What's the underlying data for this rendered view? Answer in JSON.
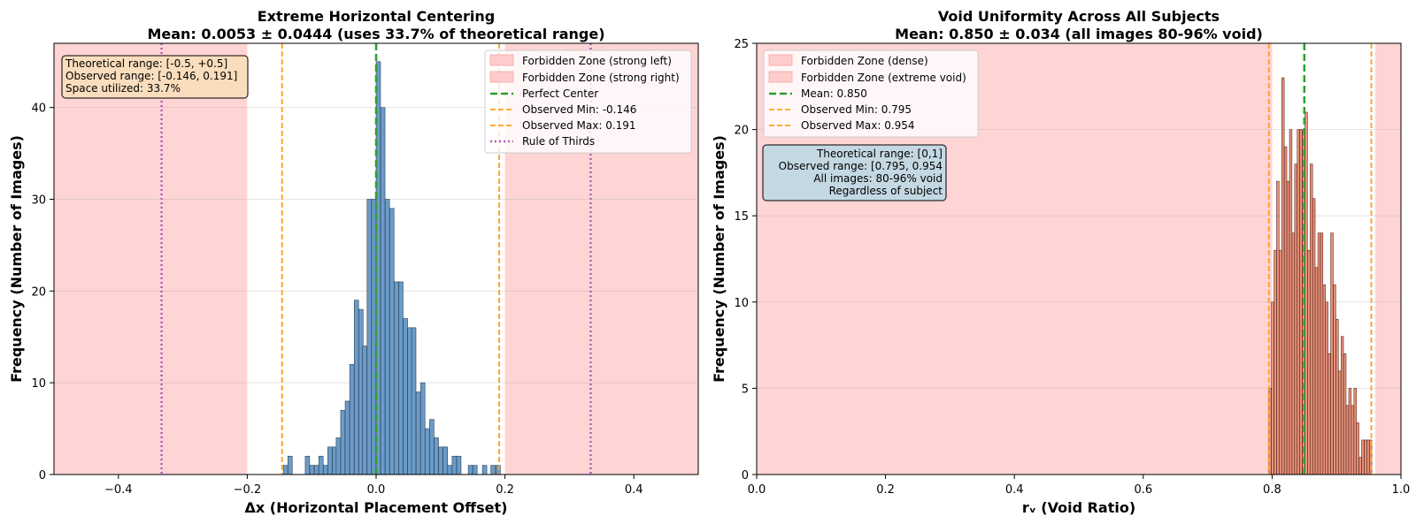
{
  "chart_data": [
    {
      "type": "bar",
      "title": "Extreme Horizontal Centering",
      "subtitle": "Mean: 0.0053 ± 0.0444 (uses 33.7% of theoretical range)",
      "xlabel": "Δx (Horizontal Placement Offset)",
      "ylabel": "Frequency (Number of Images)",
      "xlim": [
        -0.5,
        0.5
      ],
      "ylim": [
        0,
        47
      ],
      "xticks": [
        -0.4,
        -0.2,
        0.0,
        0.2,
        0.4
      ],
      "xtick_labels": [
        "−0.4",
        "−0.2",
        "0.0",
        "0.2",
        "0.4"
      ],
      "yticks": [
        0,
        10,
        20,
        30,
        40
      ],
      "yticks_labels": [
        "0",
        "10",
        "20",
        "30",
        "40"
      ],
      "grid": "y",
      "bar_color": "#6b9bc7",
      "bar_edge": "#2a3f55",
      "bin_width": 0.0068,
      "bins": [
        [
          -0.144,
          1
        ],
        [
          -0.137,
          2
        ],
        [
          -0.11,
          2
        ],
        [
          -0.103,
          1
        ],
        [
          -0.096,
          1
        ],
        [
          -0.089,
          2
        ],
        [
          -0.082,
          1
        ],
        [
          -0.075,
          3
        ],
        [
          -0.068,
          3
        ],
        [
          -0.062,
          4
        ],
        [
          -0.055,
          7
        ],
        [
          -0.048,
          8
        ],
        [
          -0.041,
          12
        ],
        [
          -0.034,
          19
        ],
        [
          -0.027,
          18
        ],
        [
          -0.021,
          14
        ],
        [
          -0.014,
          30
        ],
        [
          -0.007,
          30
        ],
        [
          0.0,
          45
        ],
        [
          0.007,
          40
        ],
        [
          0.014,
          30
        ],
        [
          0.021,
          29
        ],
        [
          0.028,
          21
        ],
        [
          0.035,
          21
        ],
        [
          0.042,
          17
        ],
        [
          0.049,
          16
        ],
        [
          0.055,
          16
        ],
        [
          0.062,
          9
        ],
        [
          0.069,
          10
        ],
        [
          0.076,
          5
        ],
        [
          0.083,
          6
        ],
        [
          0.09,
          4
        ],
        [
          0.097,
          3
        ],
        [
          0.104,
          3
        ],
        [
          0.111,
          1
        ],
        [
          0.118,
          2
        ],
        [
          0.125,
          2
        ],
        [
          0.143,
          1
        ],
        [
          0.15,
          1
        ],
        [
          0.165,
          1
        ],
        [
          0.178,
          1
        ],
        [
          0.186,
          1
        ]
      ],
      "forbidden_zones": [
        {
          "label": "Forbidden Zone (strong left)",
          "from": -0.5,
          "to": -0.2,
          "color": "#ffcccc"
        },
        {
          "label": "Forbidden Zone (strong right)",
          "from": 0.2,
          "to": 0.5,
          "color": "#ffcccc"
        }
      ],
      "vlines": [
        {
          "x": 0.0,
          "label": "Perfect Center",
          "color": "#2ca02c",
          "style": "dashed"
        },
        {
          "x": -0.146,
          "label": "Observed Min: -0.146",
          "color": "#ff9f1c",
          "style": "dash"
        },
        {
          "x": 0.191,
          "label": "Observed Max: 0.191",
          "color": "#ff9f1c",
          "style": "dash"
        },
        {
          "x": -0.333,
          "label": "Rule of Thirds",
          "color": "#b15fb8",
          "style": "dotted"
        },
        {
          "x": 0.333,
          "label": "",
          "color": "#b15fb8",
          "style": "dotted"
        }
      ],
      "legend_position": "top-right",
      "annotation": {
        "lines": [
          "Theoretical range: [-0.5, +0.5]",
          "Observed range: [-0.146, 0.191]",
          "Space utilized: 33.7%"
        ],
        "position": "top-left",
        "background": "#f9ddbd"
      }
    },
    {
      "type": "bar",
      "title": "Void Uniformity Across All Subjects",
      "subtitle": "Mean: 0.850 ± 0.034 (all images 80-96% void)",
      "xlabel": "rᵥ (Void Ratio)",
      "ylabel": "Frequency (Number of Images)",
      "xlim": [
        0.0,
        1.0
      ],
      "ylim": [
        0,
        25
      ],
      "xticks": [
        0.0,
        0.2,
        0.4,
        0.6,
        0.8,
        1.0
      ],
      "xtick_labels": [
        "0.0",
        "0.2",
        "0.4",
        "0.6",
        "0.8",
        "1.0"
      ],
      "yticks": [
        0,
        5,
        10,
        15,
        20,
        25
      ],
      "yticks_labels": [
        "0",
        "5",
        "10",
        "15",
        "20",
        "25"
      ],
      "grid": "y",
      "bar_color": "#e8927a",
      "bar_edge": "#5a2a20",
      "bin_width": 0.0038,
      "bins": [
        [
          0.795,
          5
        ],
        [
          0.799,
          10
        ],
        [
          0.803,
          13
        ],
        [
          0.807,
          17
        ],
        [
          0.811,
          13
        ],
        [
          0.815,
          23
        ],
        [
          0.819,
          19
        ],
        [
          0.823,
          17
        ],
        [
          0.827,
          20
        ],
        [
          0.831,
          14
        ],
        [
          0.835,
          18
        ],
        [
          0.839,
          20
        ],
        [
          0.843,
          20
        ],
        [
          0.847,
          20
        ],
        [
          0.851,
          21
        ],
        [
          0.855,
          13
        ],
        [
          0.859,
          18
        ],
        [
          0.863,
          16
        ],
        [
          0.867,
          12
        ],
        [
          0.871,
          14
        ],
        [
          0.875,
          14
        ],
        [
          0.879,
          11
        ],
        [
          0.883,
          10
        ],
        [
          0.887,
          7
        ],
        [
          0.891,
          14
        ],
        [
          0.895,
          11
        ],
        [
          0.899,
          9
        ],
        [
          0.903,
          6
        ],
        [
          0.907,
          8
        ],
        [
          0.911,
          7
        ],
        [
          0.915,
          4
        ],
        [
          0.919,
          5
        ],
        [
          0.923,
          4
        ],
        [
          0.927,
          5
        ],
        [
          0.931,
          3
        ],
        [
          0.935,
          1
        ],
        [
          0.939,
          2
        ],
        [
          0.943,
          2
        ],
        [
          0.947,
          2
        ],
        [
          0.951,
          2
        ]
      ],
      "forbidden_zones": [
        {
          "label": "Forbidden Zone (dense)",
          "from": 0.0,
          "to": 0.8,
          "color": "#ffcccc"
        },
        {
          "label": "Forbidden Zone (extreme void)",
          "from": 0.96,
          "to": 1.0,
          "color": "#ffcccc"
        }
      ],
      "vlines": [
        {
          "x": 0.85,
          "label": "Mean: 0.850",
          "color": "#2ca02c",
          "style": "dashed"
        },
        {
          "x": 0.795,
          "label": "Observed Min: 0.795",
          "color": "#ff9f1c",
          "style": "dash"
        },
        {
          "x": 0.954,
          "label": "Observed Max: 0.954",
          "color": "#ff9f1c",
          "style": "dash"
        }
      ],
      "legend_position": "top-left",
      "annotation": {
        "lines": [
          "Theoretical range: [0,1]",
          "Observed range: [0.795, 0.954",
          "All images: 80-96% void",
          "Regardless of subject"
        ],
        "position": "upper-left",
        "background": "#c3d8e2"
      }
    }
  ]
}
